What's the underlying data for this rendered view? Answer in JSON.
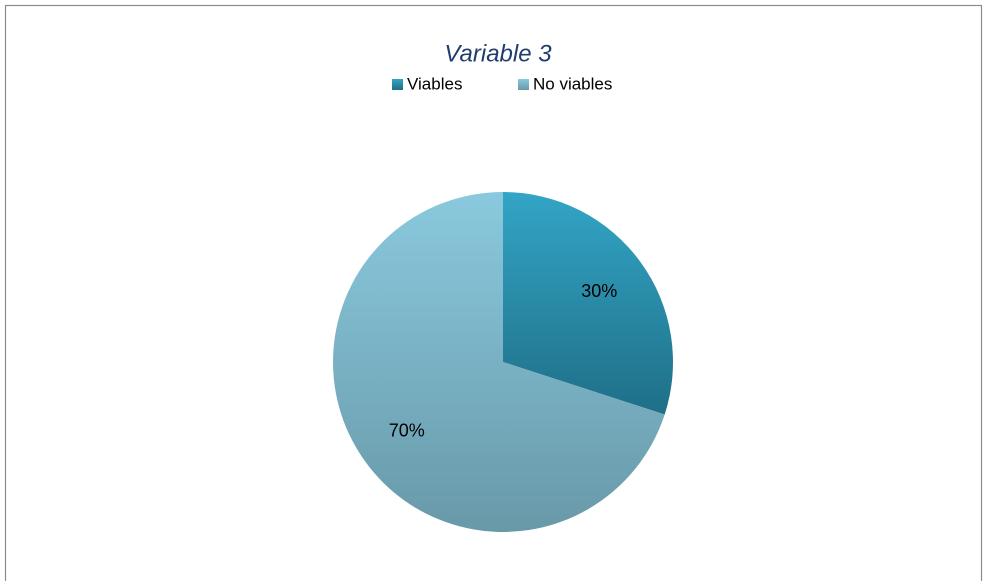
{
  "chart_data": {
    "type": "pie",
    "title": "Variable 3",
    "categories": [
      "Viables",
      "No viables"
    ],
    "values": [
      30,
      70
    ],
    "value_labels": [
      "30%",
      "70%"
    ],
    "colors": [
      [
        "#33a5c6",
        "#1f6f87"
      ],
      [
        "#8ac9de",
        "#6899a9"
      ]
    ],
    "legend": "top"
  }
}
